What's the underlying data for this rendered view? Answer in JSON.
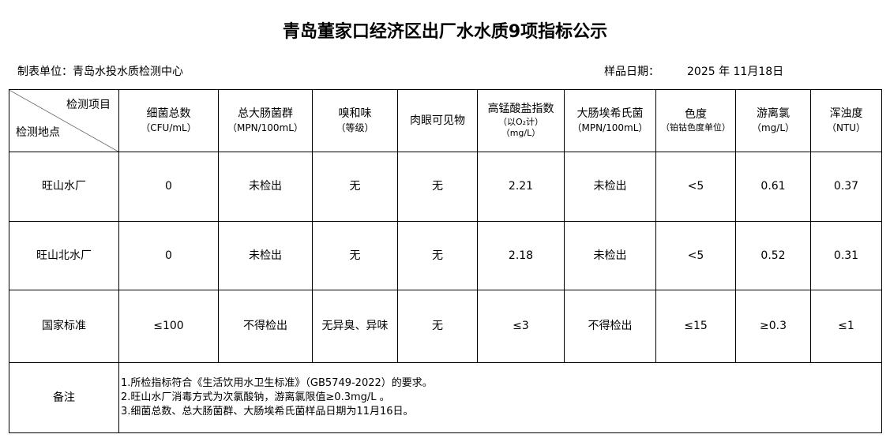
{
  "title": "青岛董家口经济区出厂水水质9项指标公示",
  "unit_label": "制表单位：青岛水投水质检测中心",
  "date_label": "样品日期：",
  "date_value": "2025 年  11月18日",
  "header": {
    "item": "检测项目",
    "location": "检测地点",
    "columns": [
      {
        "name": "细菌总数",
        "unit": "（CFU/mL）"
      },
      {
        "name": "总大肠菌群",
        "unit": "（MPN/100mL）"
      },
      {
        "name": "嗅和味",
        "unit": "（等级）"
      },
      {
        "name": "肉眼可见物",
        "unit": ""
      },
      {
        "name": "高锰酸盐指数",
        "unit": "（以O₂计）",
        "unit2": "（mg/L）"
      },
      {
        "name": "大肠埃希氏菌",
        "unit": "（MPN/100mL）"
      },
      {
        "name": "色度",
        "unit": "（铂钴色度单位）"
      },
      {
        "name": "游离氯",
        "unit": "（mg/L）"
      },
      {
        "name": "浑浊度",
        "unit": "（NTU）"
      }
    ]
  },
  "rows": [
    {
      "label": "旺山水厂",
      "values": [
        "0",
        "未检出",
        "无",
        "无",
        "2.21",
        "未检出",
        "<5",
        "0.61",
        "0.37"
      ]
    },
    {
      "label": "旺山北水厂",
      "values": [
        "0",
        "未检出",
        "无",
        "无",
        "2.18",
        "未检出",
        "<5",
        "0.52",
        "0.31"
      ]
    },
    {
      "label": "国家标准",
      "values": [
        "≤100",
        "不得检出",
        "无异臭、异味",
        "无",
        "≤3",
        "不得检出",
        "≤15",
        "≥0.3",
        "≤1"
      ]
    }
  ],
  "notes": {
    "label": "备注",
    "lines": [
      "1.所检指标符合《生活饮用水卫生标准》（GB5749-2022）的要求。",
      "2.旺山水厂消毒方式为次氯酸钠，游离氯限值≥0.3mg/L 。",
      "3.细菌总数、总大肠菌群、大肠埃希氏菌样品日期为11月16日。"
    ]
  }
}
